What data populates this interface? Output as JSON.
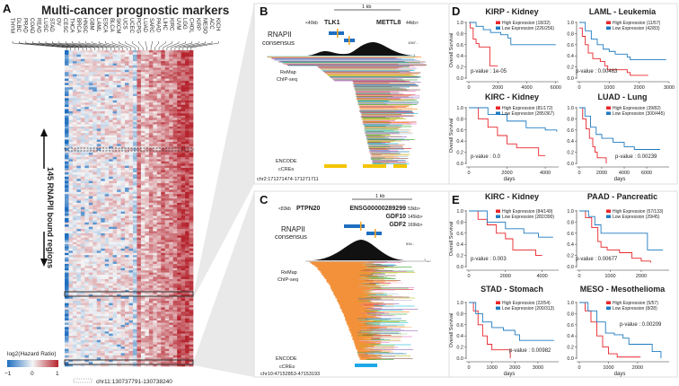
{
  "panelA": {
    "letter": "A",
    "title": "Multi-cancer prognostic markers",
    "columns": [
      "THYM",
      "DLBC",
      "PRAD",
      "COAD",
      "READ",
      "LUSC",
      "STAD",
      "OV",
      "CESC",
      "THCA",
      "BRCA",
      "HNSC",
      "GBM",
      "LAML",
      "ESCA",
      "BLCA",
      "SKCM",
      "UCS",
      "UCEC",
      "PCPG",
      "LUAD",
      "SARC",
      "PAAD",
      "LIHC",
      "KIRC",
      "UVM",
      "LGG",
      "CHOL",
      "KIRP",
      "MESO",
      "ACC",
      "KICH"
    ],
    "row_label": "145 RNAPII bound regions",
    "legend_title": "log2(Hazard Ratio)",
    "legend_ticks": [
      "−1",
      "0",
      "1"
    ],
    "legend_colors": {
      "low": "#1f6fc0",
      "mid": "#f5f5f5",
      "high": "#b5242e"
    },
    "region_label": "chr11:130737791-130738240"
  },
  "panelB": {
    "letter": "B",
    "scale": "1 kb",
    "gene_left_dist": "<40kb",
    "gene_left": "TLK1",
    "gene_right": "METTL8",
    "gene_right_dist": "44kb>",
    "rnapii_label_1": "RNAPII",
    "rnapii_label_2": "consensus",
    "peak_max": "1067 -",
    "peak_min": "1 _",
    "remap_1": "ReMap",
    "remap_2": "ChIP-seq",
    "encode_1": "ENCODE",
    "encode_2": "cCREs",
    "region": "chr2:171271474-171271711",
    "ccre_color": "#f5c400"
  },
  "panelC": {
    "letter": "C",
    "scale": "1 kb",
    "gene_left_dist": "<83kb",
    "gene_left": "PTPN20",
    "genes_right": [
      {
        "name": "ENSG00000289299",
        "dist": "53kb>"
      },
      {
        "name": "GDF10",
        "dist": "145kb>"
      },
      {
        "name": "GDF2",
        "dist": "169kb>"
      }
    ],
    "rnapii_label_1": "RNAPII",
    "rnapii_label_2": "consensus",
    "peak_max": "534 -",
    "peak_min": "1 _",
    "remap_1": "ReMap",
    "remap_2": "ChIP-seq",
    "encode_1": "ENCODE",
    "encode_2": "cCREs",
    "region": "chr10:47152853-47153193",
    "ccre_color": "#1ea7e8"
  },
  "panelD": {
    "letter": "D"
  },
  "panelE": {
    "letter": "E"
  },
  "colors": {
    "high": "#e8262b",
    "low": "#1f7bc1"
  },
  "chart_data": [
    {
      "type": "line",
      "panel": "D",
      "title": "KIRP - Kidney",
      "ylabel": "Overall Survival",
      "xlabel": "",
      "xlim": [
        0,
        6200
      ],
      "ylim": [
        0,
        1
      ],
      "xticks": [
        0,
        2000,
        4000,
        6000
      ],
      "yticks": [
        "0.0",
        "0.2",
        "0.4",
        "0.6",
        "0.8",
        "1.0"
      ],
      "pvalue": "p-value : 1e-05",
      "series": [
        {
          "name": "High Expression (18/32)",
          "x": [
            0,
            100,
            300,
            500,
            700,
            1300,
            1450,
            2000
          ],
          "y": [
            1,
            0.9,
            0.7,
            0.62,
            0.56,
            0.56,
            0.22,
            0.22
          ]
        },
        {
          "name": "Low Expression (226/256)",
          "x": [
            0,
            500,
            1000,
            1500,
            2200,
            2700,
            2900,
            6000
          ],
          "y": [
            1,
            0.93,
            0.87,
            0.82,
            0.78,
            0.72,
            0.6,
            0.6
          ]
        }
      ]
    },
    {
      "type": "line",
      "panel": "D",
      "title": "LAML - Leukemia",
      "ylabel": "",
      "xlabel": "",
      "xlim": [
        0,
        3000
      ],
      "ylim": [
        0,
        1
      ],
      "xticks": [
        0,
        1000,
        2000,
        3000
      ],
      "yticks": [
        "0.0",
        "0.2",
        "0.4",
        "0.6",
        "0.8",
        "1.0"
      ],
      "pvalue": "p-value : 0.00463",
      "series": [
        {
          "name": "High Expression (11/57)",
          "x": [
            0,
            100,
            200,
            300,
            450,
            700,
            850,
            950,
            1600,
            1700,
            2300
          ],
          "y": [
            0.9,
            0.75,
            0.6,
            0.45,
            0.35,
            0.3,
            0.22,
            0.15,
            0.1,
            0.05,
            0.05
          ]
        },
        {
          "name": "Low Expression (42/83)",
          "x": [
            0,
            200,
            400,
            600,
            800,
            1000,
            1200,
            1600,
            1700,
            2900
          ],
          "y": [
            1,
            0.85,
            0.7,
            0.6,
            0.52,
            0.48,
            0.43,
            0.38,
            0.33,
            0.33
          ]
        }
      ]
    },
    {
      "type": "line",
      "panel": "D",
      "title": "KIRC - Kidney",
      "ylabel": "Overall Survival",
      "xlabel": "days",
      "xlim": [
        0,
        4700
      ],
      "ylim": [
        0,
        1
      ],
      "xticks": [
        0,
        2000,
        4000
      ],
      "yticks": [
        "0.0",
        "0.2",
        "0.4",
        "0.6",
        "0.8",
        "1.0"
      ],
      "pvalue": "p-value : 0.0",
      "series": [
        {
          "name": "High Expression (81/172)",
          "x": [
            0,
            500,
            1000,
            1500,
            2000,
            2500,
            3600,
            3650,
            4000
          ],
          "y": [
            1,
            0.8,
            0.65,
            0.5,
            0.35,
            0.28,
            0.28,
            0.14,
            0.14
          ]
        },
        {
          "name": "Low Expression (285/367)",
          "x": [
            0,
            1000,
            2000,
            3000,
            4000,
            4600
          ],
          "y": [
            1,
            0.88,
            0.76,
            0.64,
            0.6,
            0.57
          ]
        }
      ]
    },
    {
      "type": "line",
      "panel": "D",
      "title": "LUAD - Lung",
      "ylabel": "",
      "xlabel": "days",
      "xlim": [
        0,
        8000
      ],
      "ylim": [
        0,
        1
      ],
      "xticks": [
        0,
        2000,
        4000,
        6000
      ],
      "yticks": [
        "0.0",
        "0.2",
        "0.4",
        "0.6",
        "0.8",
        "1.0"
      ],
      "pvalue": "p-value : 0.00239",
      "series": [
        {
          "name": "High Expression (39/82)",
          "x": [
            0,
            300,
            600,
            900,
            1200,
            1400,
            1600,
            2400,
            2400
          ],
          "y": [
            1,
            0.8,
            0.62,
            0.45,
            0.3,
            0.2,
            0.1,
            0.1,
            0
          ]
        },
        {
          "name": "Low Expression (300/445)",
          "x": [
            0,
            500,
            1000,
            1500,
            2000,
            3000,
            4000,
            4900,
            7200
          ],
          "y": [
            1,
            0.85,
            0.65,
            0.52,
            0.45,
            0.38,
            0.3,
            0.25,
            0.25
          ]
        }
      ]
    },
    {
      "type": "line",
      "panel": "E",
      "title": "KIRC - Kidney",
      "ylabel": "Overall Survival",
      "xlabel": "",
      "xlim": [
        0,
        4900
      ],
      "ylim": [
        0,
        1
      ],
      "xticks": [
        0,
        2000,
        4000
      ],
      "yticks": [
        "0.0",
        "0.2",
        "0.4",
        "0.6",
        "0.8",
        "1.0"
      ],
      "pvalue": "p-value : 0.003",
      "series": [
        {
          "name": "High Expression (84/149)",
          "x": [
            0,
            500,
            1000,
            1500,
            2000,
            2400,
            3600,
            3650,
            4000
          ],
          "y": [
            1,
            0.85,
            0.75,
            0.6,
            0.5,
            0.3,
            0.3,
            0.2,
            0.2
          ]
        },
        {
          "name": "Low Expression (282/390)",
          "x": [
            0,
            1000,
            2000,
            3000,
            3800,
            4600
          ],
          "y": [
            1,
            0.8,
            0.68,
            0.6,
            0.53,
            0.53
          ]
        }
      ]
    },
    {
      "type": "line",
      "panel": "E",
      "title": "PAAD - Pancreatic",
      "ylabel": "",
      "xlabel": "",
      "xlim": [
        0,
        2900
      ],
      "ylim": [
        0,
        1
      ],
      "xticks": [
        0,
        1000,
        2000
      ],
      "yticks": [
        "0.0",
        "0.2",
        "0.4",
        "0.6",
        "0.8",
        "1.0"
      ],
      "pvalue": "p-value : 0.00677",
      "series": [
        {
          "name": "High Expression (57/133)",
          "x": [
            0,
            200,
            400,
            600,
            700,
            900,
            1300,
            1700,
            2000,
            2300
          ],
          "y": [
            1,
            0.88,
            0.7,
            0.45,
            0.35,
            0.3,
            0.25,
            0.15,
            0.1,
            0.07
          ]
        },
        {
          "name": "Low Expression (29/45)",
          "x": [
            0,
            300,
            500,
            700,
            2000,
            2200,
            2700
          ],
          "y": [
            1,
            0.9,
            0.75,
            0.6,
            0.6,
            0.3,
            0.3
          ]
        }
      ]
    },
    {
      "type": "line",
      "panel": "E",
      "title": "STAD - Stomach",
      "ylabel": "Overall Survival",
      "xlabel": "days",
      "xlim": [
        0,
        3900
      ],
      "ylim": [
        0,
        1
      ],
      "xticks": [
        0,
        1000,
        2000,
        3000
      ],
      "yticks": [
        "0.0",
        "0.2",
        "0.4",
        "0.6",
        "0.8",
        "1.0"
      ],
      "pvalue": "p-value : 0.00982",
      "series": [
        {
          "name": "High Expression (22/54)",
          "x": [
            0,
            200,
            400,
            600,
            800,
            1000,
            1800,
            1800
          ],
          "y": [
            1,
            0.85,
            0.6,
            0.4,
            0.25,
            0.15,
            0.15,
            0
          ]
        },
        {
          "name": "Low Expression (200/313)",
          "x": [
            0,
            300,
            600,
            1000,
            1500,
            2000,
            2200,
            3700
          ],
          "y": [
            1,
            0.8,
            0.65,
            0.55,
            0.5,
            0.42,
            0.32,
            0.32
          ]
        }
      ]
    },
    {
      "type": "line",
      "panel": "E",
      "title": "MESO - Mesothelioma",
      "ylabel": "",
      "xlabel": "days",
      "xlim": [
        0,
        3080
      ],
      "ylim": [
        0,
        1
      ],
      "xticks": [
        0,
        1000,
        2000
      ],
      "yticks": [
        "0.0",
        "0.2",
        "0.4",
        "0.6",
        "0.8",
        "1.0"
      ],
      "pvalue": "p-value :  0.00209",
      "series": [
        {
          "name": "High Expression (5/57)",
          "x": [
            0,
            200,
            400,
            600,
            800,
            1000,
            1300,
            2100
          ],
          "y": [
            1,
            0.85,
            0.65,
            0.4,
            0.2,
            0.08,
            0.02,
            0.02
          ]
        },
        {
          "name": "Low Expression (8/28)",
          "x": [
            0,
            300,
            600,
            900,
            1200,
            1500,
            1700,
            2400,
            2500,
            2800,
            2800
          ],
          "y": [
            1,
            0.85,
            0.65,
            0.45,
            0.42,
            0.36,
            0.25,
            0.25,
            0.12,
            0.12,
            0
          ]
        }
      ]
    }
  ]
}
